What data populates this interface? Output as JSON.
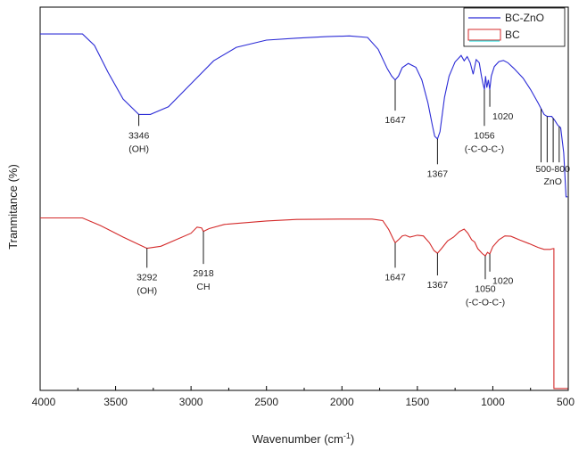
{
  "chart_data": {
    "type": "line",
    "xlabel": "Wavenumber (cm",
    "xlabel_sup": "-1",
    "xlabel_close": ")",
    "ylabel": "Tranmitance (%)",
    "xlim": [
      4000,
      500
    ],
    "ylim": [
      0,
      100
    ],
    "x_ticks": [
      4000,
      3500,
      3000,
      2500,
      2000,
      1500,
      1000,
      500
    ],
    "x_tick_labels": [
      "4000",
      "3500",
      "3000",
      "2500",
      "2000",
      "1500",
      "1000",
      "500"
    ],
    "grid": false,
    "legend_position": "top-right",
    "series": [
      {
        "name": "BC-ZnO",
        "color": "#2b2bd6",
        "points": [
          [
            4000,
            93
          ],
          [
            3720,
            93
          ],
          [
            3640,
            90
          ],
          [
            3550,
            83
          ],
          [
            3450,
            76
          ],
          [
            3346,
            72
          ],
          [
            3270,
            72
          ],
          [
            3150,
            74
          ],
          [
            3000,
            80
          ],
          [
            2850,
            86
          ],
          [
            2700,
            89.5
          ],
          [
            2500,
            91.4
          ],
          [
            2300,
            91.9
          ],
          [
            2100,
            92.3
          ],
          [
            1950,
            92.5
          ],
          [
            1830,
            92.1
          ],
          [
            1760,
            89
          ],
          [
            1700,
            84
          ],
          [
            1670,
            82
          ],
          [
            1647,
            81
          ],
          [
            1625,
            82
          ],
          [
            1600,
            84.2
          ],
          [
            1560,
            85.3
          ],
          [
            1510,
            84.3
          ],
          [
            1470,
            81
          ],
          [
            1430,
            75
          ],
          [
            1400,
            69
          ],
          [
            1385,
            66.3
          ],
          [
            1367,
            65.6
          ],
          [
            1350,
            67.5
          ],
          [
            1320,
            76.5
          ],
          [
            1290,
            82
          ],
          [
            1250,
            85.7
          ],
          [
            1210,
            87.4
          ],
          [
            1190,
            86
          ],
          [
            1170,
            87.1
          ],
          [
            1150,
            85.5
          ],
          [
            1130,
            82.5
          ],
          [
            1110,
            86.3
          ],
          [
            1090,
            85.5
          ],
          [
            1075,
            82
          ],
          [
            1065,
            80
          ],
          [
            1056,
            78.5
          ],
          [
            1048,
            82
          ],
          [
            1040,
            79
          ],
          [
            1030,
            81
          ],
          [
            1020,
            78.5
          ],
          [
            1010,
            82
          ],
          [
            990,
            84.5
          ],
          [
            960,
            85.8
          ],
          [
            930,
            86.1
          ],
          [
            900,
            85.5
          ],
          [
            860,
            84
          ],
          [
            800,
            81.5
          ],
          [
            750,
            78.5
          ],
          [
            700,
            75
          ],
          [
            660,
            72
          ],
          [
            640,
            71.5
          ],
          [
            610,
            71.5
          ],
          [
            590,
            70.5
          ],
          [
            570,
            69.2
          ],
          [
            550,
            68.5
          ],
          [
            530,
            62
          ],
          [
            515,
            50.5
          ],
          [
            505,
            50.5
          ]
        ]
      },
      {
        "name": "BC",
        "color": "#d42a2a",
        "points": [
          [
            4000,
            45
          ],
          [
            3720,
            45
          ],
          [
            3600,
            43
          ],
          [
            3450,
            40
          ],
          [
            3300,
            37.2
          ],
          [
            3292,
            37.1
          ],
          [
            3200,
            37.6
          ],
          [
            3100,
            39.3
          ],
          [
            3000,
            41
          ],
          [
            2960,
            42.6
          ],
          [
            2930,
            42.4
          ],
          [
            2918,
            41.5
          ],
          [
            2880,
            42.2
          ],
          [
            2780,
            43.3
          ],
          [
            2500,
            44.2
          ],
          [
            2300,
            44.6
          ],
          [
            2000,
            44.7
          ],
          [
            1800,
            44.7
          ],
          [
            1730,
            44.3
          ],
          [
            1690,
            42
          ],
          [
            1660,
            39.5
          ],
          [
            1647,
            38.5
          ],
          [
            1620,
            39.5
          ],
          [
            1600,
            40.3
          ],
          [
            1580,
            40.5
          ],
          [
            1550,
            40
          ],
          [
            1500,
            40.5
          ],
          [
            1460,
            40.3
          ],
          [
            1420,
            38.5
          ],
          [
            1390,
            36.5
          ],
          [
            1367,
            35.8
          ],
          [
            1340,
            37
          ],
          [
            1300,
            39
          ],
          [
            1260,
            40
          ],
          [
            1220,
            41.5
          ],
          [
            1190,
            42.1
          ],
          [
            1165,
            41
          ],
          [
            1140,
            39.3
          ],
          [
            1120,
            38.7
          ],
          [
            1100,
            37
          ],
          [
            1070,
            35.7
          ],
          [
            1050,
            35.1
          ],
          [
            1035,
            36
          ],
          [
            1020,
            35.6
          ],
          [
            1000,
            37.5
          ],
          [
            960,
            39.3
          ],
          [
            920,
            40.3
          ],
          [
            880,
            40.2
          ],
          [
            820,
            39.2
          ],
          [
            760,
            38.3
          ],
          [
            700,
            37.3
          ],
          [
            660,
            36.8
          ],
          [
            620,
            36.8
          ],
          [
            600,
            37
          ],
          [
            595,
            37
          ],
          [
            595,
            0.5
          ],
          [
            500,
            0.5
          ]
        ]
      }
    ],
    "annotations": [
      {
        "series": 0,
        "x": 3346,
        "line_to": 69,
        "lines": [
          "3346",
          "(OH)"
        ]
      },
      {
        "series": 0,
        "x": 1647,
        "line_to": 73,
        "lines": [
          "1647"
        ]
      },
      {
        "series": 0,
        "x": 1367,
        "line_to": 59,
        "lines": [
          "1367"
        ]
      },
      {
        "series": 0,
        "x": 1056,
        "line_to": 69,
        "lines": [
          "1056",
          "(-C-O-C-)"
        ]
      },
      {
        "series": 0,
        "x": 1020,
        "line_to": 74,
        "lines": [
          "1020"
        ]
      },
      {
        "series": 1,
        "x": 3292,
        "line_to": 32,
        "lines": [
          "3292",
          "(OH)"
        ]
      },
      {
        "series": 1,
        "x": 2918,
        "line_to": 33,
        "lines": [
          "2918",
          "CH"
        ]
      },
      {
        "series": 1,
        "x": 1647,
        "line_to": 32,
        "lines": [
          "1647"
        ]
      },
      {
        "series": 1,
        "x": 1367,
        "line_to": 30,
        "lines": [
          "1367"
        ]
      },
      {
        "series": 1,
        "x": 1050,
        "line_to": 29,
        "lines": [
          "1050",
          "(-C-O-C-)"
        ]
      },
      {
        "series": 1,
        "x": 1020,
        "line_to": 31,
        "lines": [
          "1020"
        ]
      }
    ],
    "zno_band": {
      "label_lines": [
        "500-800",
        "ZnO"
      ],
      "x": [
        680,
        640,
        600,
        560
      ]
    }
  }
}
